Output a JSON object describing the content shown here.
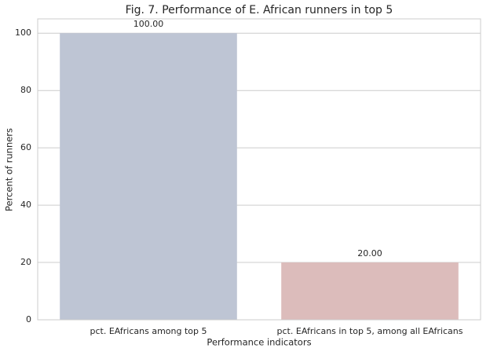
{
  "chart_data": {
    "type": "bar",
    "title": "Fig. 7. Performance of E. African runners in top 5",
    "x_label": "Performance indicators",
    "y_label": "Percent of runners",
    "categories": [
      "pct. EAfricans among top 5",
      "pct. EAfricans in top 5, among all EAfricans"
    ],
    "values": [
      100,
      20
    ],
    "value_labels": [
      "100.00",
      "20.00"
    ],
    "colors": [
      "#bec5d4",
      "#dcbcbb"
    ],
    "ylim": [
      0,
      105
    ],
    "yticks": [
      0,
      20,
      40,
      60,
      80,
      100
    ],
    "grid": true
  }
}
